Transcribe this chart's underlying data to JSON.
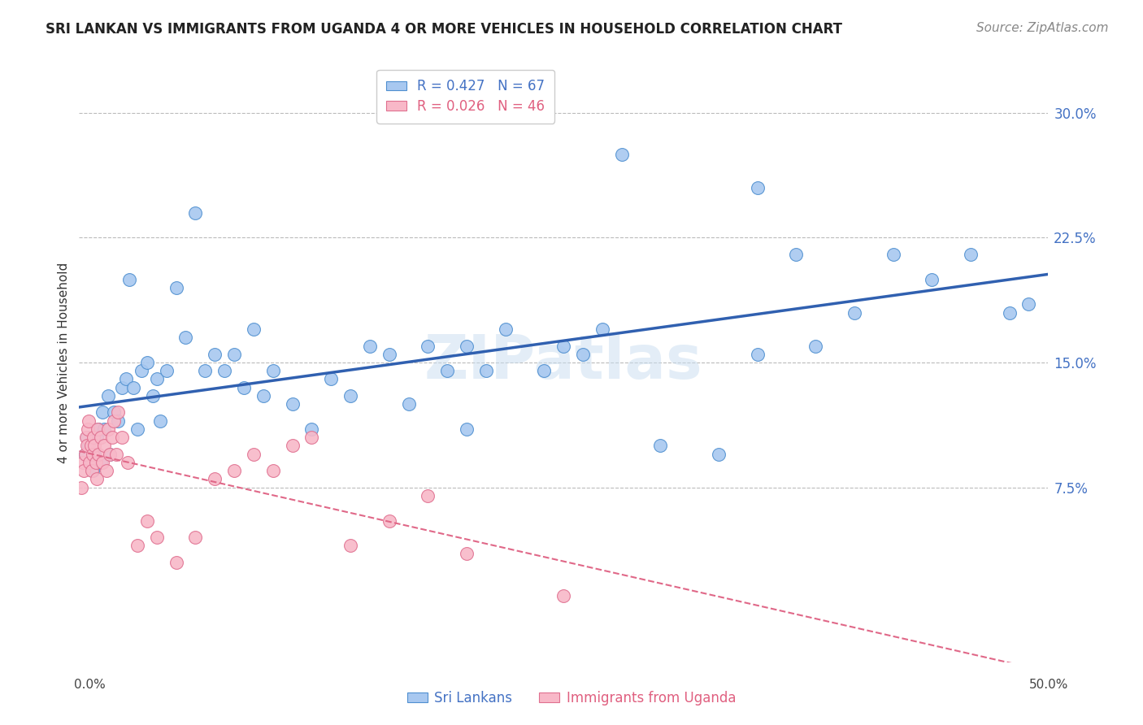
{
  "title": "SRI LANKAN VS IMMIGRANTS FROM UGANDA 4 OR MORE VEHICLES IN HOUSEHOLD CORRELATION CHART",
  "source": "Source: ZipAtlas.com",
  "ylabel": "4 or more Vehicles in Household",
  "xlim": [
    0.0,
    50.0
  ],
  "ylim": [
    -3.0,
    33.0
  ],
  "yticks": [
    7.5,
    15.0,
    22.5,
    30.0
  ],
  "ytick_labels": [
    "7.5%",
    "15.0%",
    "22.5%",
    "30.0%"
  ],
  "xtick_left": "0.0%",
  "xtick_right": "50.0%",
  "legend_r1": "R = 0.427",
  "legend_n1": "N = 67",
  "legend_r2": "R = 0.026",
  "legend_n2": "N = 46",
  "sri_lankan_fill": "#a8c8f0",
  "sri_lankan_edge": "#5090d0",
  "uganda_fill": "#f8b8c8",
  "uganda_edge": "#e07090",
  "sri_line_color": "#3060b0",
  "uga_line_color": "#e06888",
  "background_color": "#ffffff",
  "watermark": "ZIPatlas",
  "sri_lankans_x": [
    0.3,
    0.4,
    0.5,
    0.6,
    0.7,
    0.8,
    0.9,
    1.0,
    1.1,
    1.2,
    1.3,
    1.5,
    1.6,
    1.8,
    2.0,
    2.2,
    2.4,
    2.6,
    2.8,
    3.0,
    3.2,
    3.5,
    3.8,
    4.0,
    4.2,
    4.5,
    5.0,
    5.5,
    6.0,
    6.5,
    7.0,
    7.5,
    8.0,
    8.5,
    9.0,
    9.5,
    10.0,
    11.0,
    12.0,
    13.0,
    14.0,
    15.0,
    16.0,
    17.0,
    18.0,
    19.0,
    20.0,
    21.0,
    22.0,
    24.0,
    25.0,
    26.0,
    27.0,
    28.0,
    30.0,
    33.0,
    35.0,
    37.0,
    38.0,
    40.0,
    42.0,
    44.0,
    46.0,
    48.0,
    49.0,
    35.0,
    20.0
  ],
  "sri_lankans_y": [
    9.5,
    10.5,
    10.0,
    9.0,
    8.5,
    9.5,
    10.5,
    11.0,
    9.0,
    12.0,
    11.0,
    13.0,
    9.5,
    12.0,
    11.5,
    13.5,
    14.0,
    20.0,
    13.5,
    11.0,
    14.5,
    15.0,
    13.0,
    14.0,
    11.5,
    14.5,
    19.5,
    16.5,
    24.0,
    14.5,
    15.5,
    14.5,
    15.5,
    13.5,
    17.0,
    13.0,
    14.5,
    12.5,
    11.0,
    14.0,
    13.0,
    16.0,
    15.5,
    12.5,
    16.0,
    14.5,
    16.0,
    14.5,
    17.0,
    14.5,
    16.0,
    15.5,
    17.0,
    27.5,
    10.0,
    9.5,
    15.5,
    21.5,
    16.0,
    18.0,
    21.5,
    20.0,
    21.5,
    18.0,
    18.5,
    25.5,
    11.0
  ],
  "uganda_x": [
    0.1,
    0.2,
    0.25,
    0.3,
    0.35,
    0.4,
    0.45,
    0.5,
    0.55,
    0.6,
    0.65,
    0.7,
    0.75,
    0.8,
    0.85,
    0.9,
    0.95,
    1.0,
    1.1,
    1.2,
    1.3,
    1.4,
    1.5,
    1.6,
    1.7,
    1.8,
    1.9,
    2.0,
    2.2,
    2.5,
    3.0,
    3.5,
    4.0,
    5.0,
    6.0,
    7.0,
    8.0,
    9.0,
    10.0,
    11.0,
    12.0,
    14.0,
    16.0,
    18.0,
    20.0,
    25.0
  ],
  "uganda_y": [
    7.5,
    9.0,
    8.5,
    9.5,
    10.5,
    10.0,
    11.0,
    11.5,
    9.0,
    10.0,
    8.5,
    9.5,
    10.5,
    10.0,
    9.0,
    8.0,
    11.0,
    9.5,
    10.5,
    9.0,
    10.0,
    8.5,
    11.0,
    9.5,
    10.5,
    11.5,
    9.5,
    12.0,
    10.5,
    9.0,
    4.0,
    5.5,
    4.5,
    3.0,
    4.5,
    8.0,
    8.5,
    9.5,
    8.5,
    10.0,
    10.5,
    4.0,
    5.5,
    7.0,
    3.5,
    1.0
  ]
}
